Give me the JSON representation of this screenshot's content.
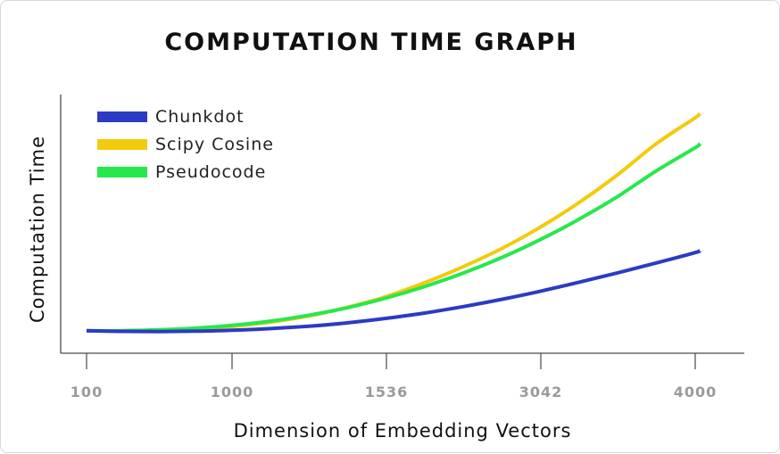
{
  "chart_data": {
    "type": "line",
    "title": "COMPUTATION TIME GRAPH",
    "xlabel": "Dimension of Embedding Vectors",
    "ylabel": "Computation Time",
    "x_ticks": [
      "100",
      "1000",
      "1536",
      "3042",
      "4000"
    ],
    "x": [
      0,
      0.25,
      0.5,
      0.75,
      1,
      1.25,
      1.5,
      1.75,
      2,
      2.25,
      2.5,
      2.75,
      3,
      3.25,
      3.5,
      3.75,
      4,
      4.03
    ],
    "ylim": [
      0,
      1
    ],
    "grid": false,
    "legend_position": "top-left",
    "series": [
      {
        "name": "Chunkdot",
        "color": "#2b3bc4",
        "values": [
          0.005,
          0.002,
          0.001,
          0.003,
          0.007,
          0.015,
          0.026,
          0.042,
          0.063,
          0.088,
          0.118,
          0.152,
          0.19,
          0.232,
          0.276,
          0.322,
          0.37,
          0.38
        ]
      },
      {
        "name": "Scipy Cosine",
        "color": "#f2cb0c",
        "values": [
          0.005,
          0.004,
          0.007,
          0.013,
          0.025,
          0.045,
          0.074,
          0.115,
          0.165,
          0.23,
          0.305,
          0.39,
          0.49,
          0.605,
          0.735,
          0.88,
          1.0,
          1.02
        ]
      },
      {
        "name": "Pseudocode",
        "color": "#27e84a",
        "values": [
          0.005,
          0.005,
          0.009,
          0.017,
          0.03,
          0.05,
          0.078,
          0.113,
          0.158,
          0.212,
          0.275,
          0.348,
          0.432,
          0.527,
          0.633,
          0.753,
          0.86,
          0.88
        ]
      }
    ]
  }
}
